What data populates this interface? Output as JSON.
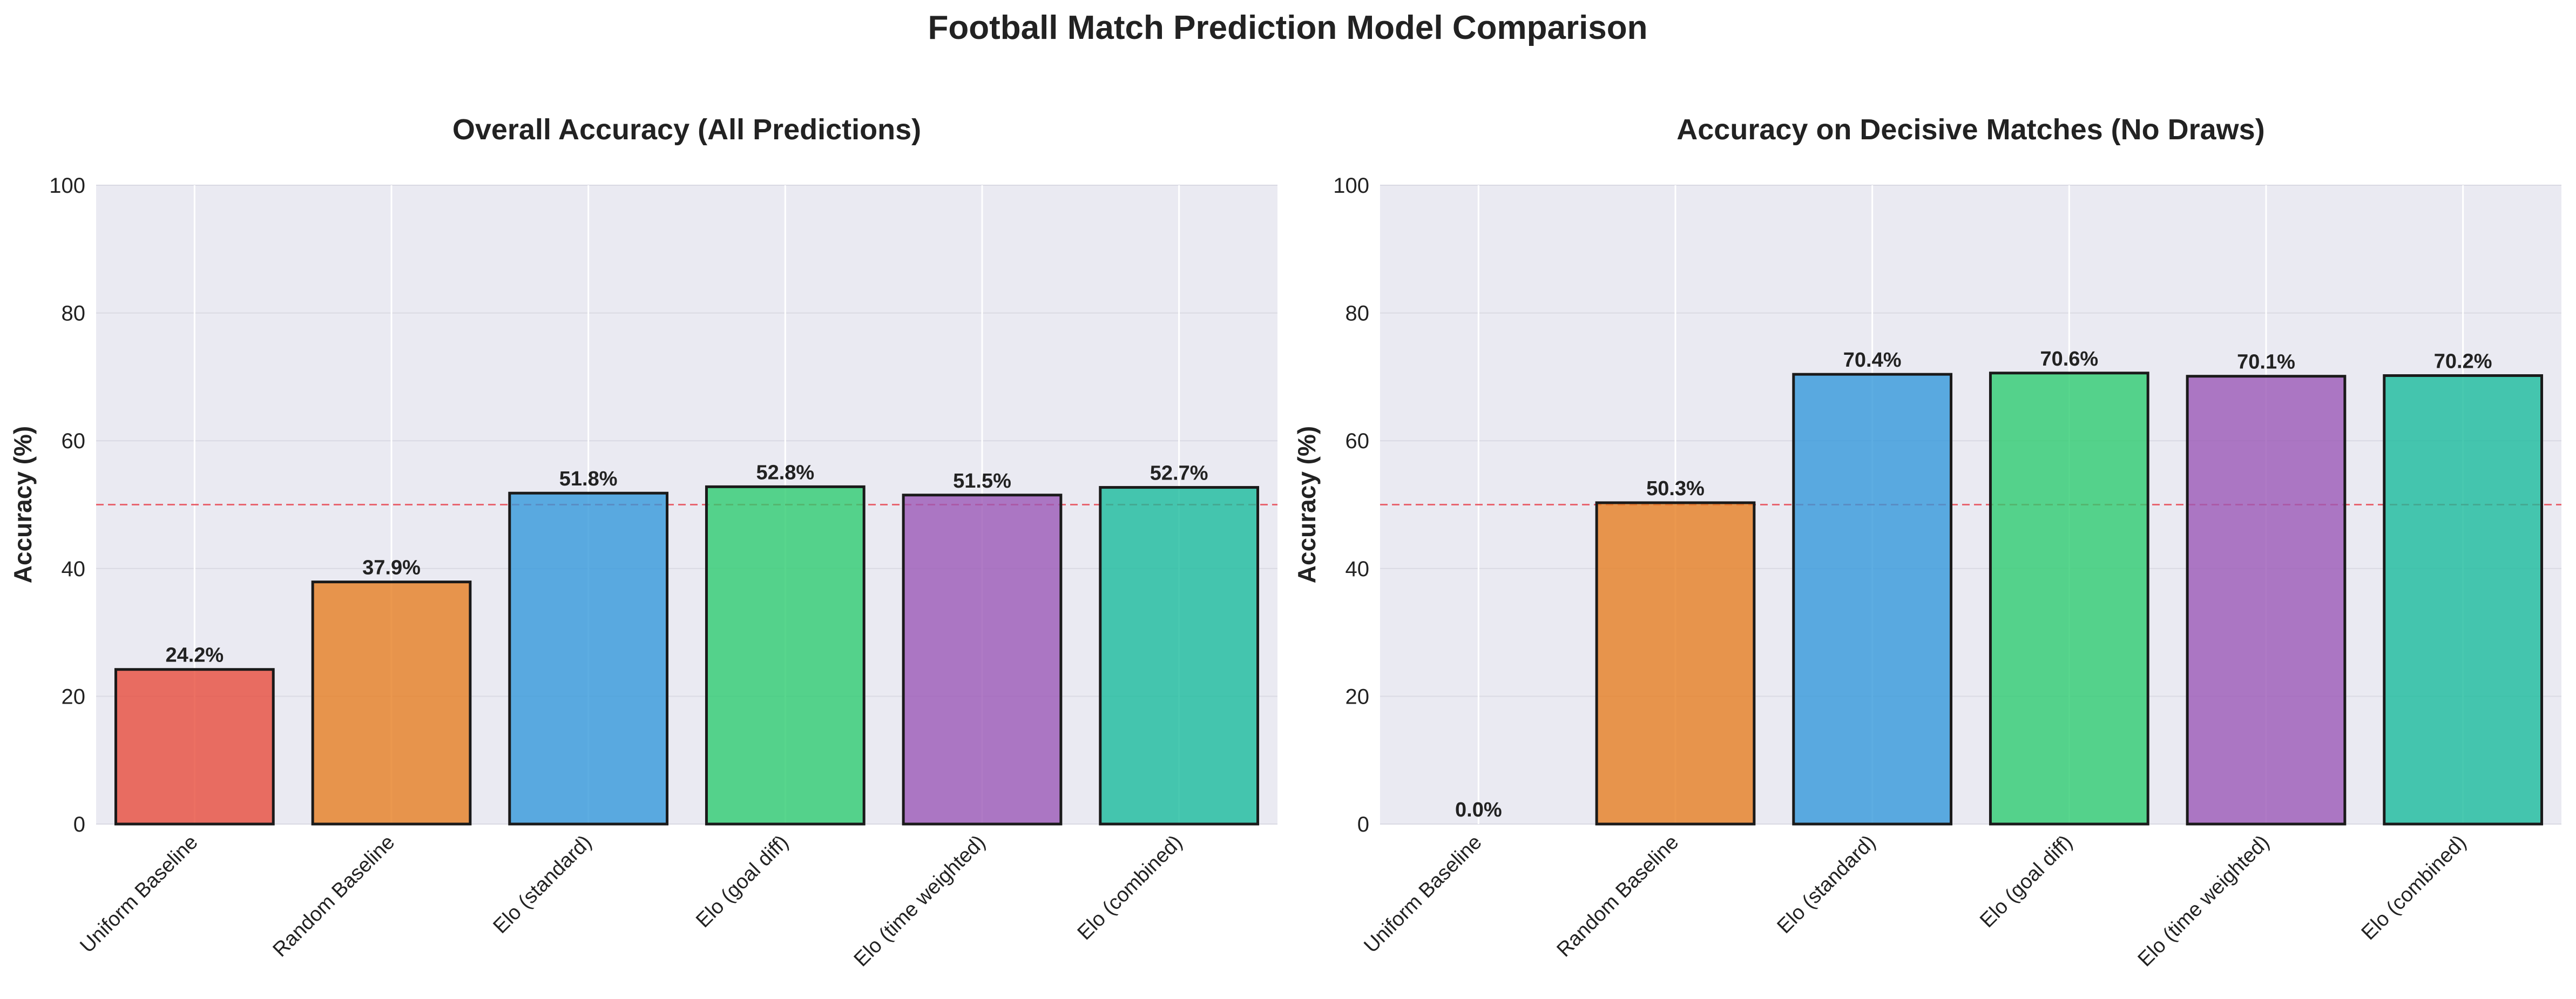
{
  "figure": {
    "title": "Football Match Prediction Model Comparison"
  },
  "chart_data": [
    {
      "type": "bar",
      "title": "Overall Accuracy (All Predictions)",
      "xlabel": "",
      "ylabel": "Accuracy (%)",
      "ylim": [
        0,
        100
      ],
      "yticks": [
        0,
        20,
        40,
        60,
        80,
        100
      ],
      "grid": true,
      "reference_line": {
        "y": 50,
        "color": "#e8505b",
        "style": "dashed"
      },
      "categories": [
        "Uniform Baseline",
        "Random Baseline",
        "Elo (standard)",
        "Elo (goal diff)",
        "Elo (time weighted)",
        "Elo (combined)"
      ],
      "values": [
        24.2,
        37.9,
        51.8,
        52.8,
        51.5,
        52.7
      ],
      "value_labels": [
        "24.2%",
        "37.9%",
        "51.8%",
        "52.8%",
        "51.5%",
        "52.7%"
      ],
      "colors": [
        "#e74c3c",
        "#e67e22",
        "#3498db",
        "#2ecc71",
        "#9b59b6",
        "#1abc9c"
      ]
    },
    {
      "type": "bar",
      "title": "Accuracy on Decisive Matches (No Draws)",
      "xlabel": "",
      "ylabel": "Accuracy (%)",
      "ylim": [
        0,
        100
      ],
      "yticks": [
        0,
        20,
        40,
        60,
        80,
        100
      ],
      "grid": true,
      "reference_line": {
        "y": 50,
        "color": "#e8505b",
        "style": "dashed"
      },
      "categories": [
        "Uniform Baseline",
        "Random Baseline",
        "Elo (standard)",
        "Elo (goal diff)",
        "Elo (time weighted)",
        "Elo (combined)"
      ],
      "values": [
        0.0,
        50.3,
        70.4,
        70.6,
        70.1,
        70.2
      ],
      "value_labels": [
        "0.0%",
        "50.3%",
        "70.4%",
        "70.6%",
        "70.1%",
        "70.2%"
      ],
      "colors": [
        "#e74c3c",
        "#e67e22",
        "#3498db",
        "#2ecc71",
        "#9b59b6",
        "#1abc9c"
      ]
    }
  ]
}
